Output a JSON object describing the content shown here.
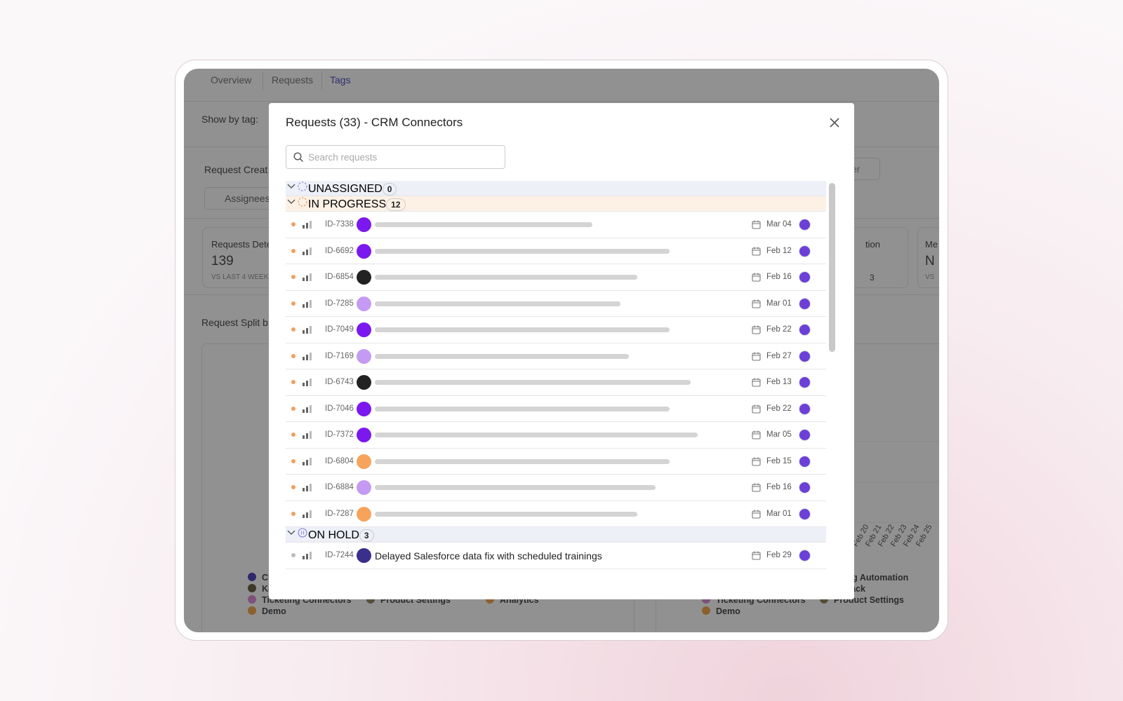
{
  "dashboard": {
    "tabs": [
      "Overview",
      "Requests",
      "Tags"
    ],
    "filter_label": "Show by tag:",
    "section_title": "Request Creat",
    "assignees_button": "Assignees",
    "button_fragment": "er",
    "card_title": "Requests Detec",
    "card_value": 139,
    "card_note": "VS LAST 4 WEEK",
    "right_card_title": "tion",
    "right_card_delta": 3,
    "far_card_title": "Me",
    "far_card_value": "N",
    "far_card_note": "VS",
    "split_title": "Request Split b",
    "left_legend": [
      {
        "label": "Cl",
        "color": "#3b2fb0"
      },
      {
        "label": "Ka",
        "color": "#5a4a2a"
      },
      {
        "label": "Ticketing Connectors",
        "color": "#d77fd0"
      },
      {
        "label": "Product Settings",
        "color": "#8a7a55"
      },
      {
        "label": "Analytics",
        "color": "#f39c3a"
      },
      {
        "label": "Demo",
        "color": "#f39c3a"
      }
    ],
    "right_legend": [
      {
        "label": "keting Automation",
        "color": null
      },
      {
        "label": "to Slack",
        "color": null
      },
      {
        "label": "Ticketing Connectors",
        "color": "#d77fd0"
      },
      {
        "label": "Product Settings",
        "color": "#8a7a55"
      },
      {
        "label": "Demo",
        "color": "#f39c3a"
      }
    ],
    "x_labels": [
      "Feb 20",
      "Feb 21",
      "Feb 22",
      "Feb 23",
      "Feb 24",
      "Feb 25"
    ]
  },
  "modal": {
    "title": "Requests (33) - CRM Connectors",
    "search_placeholder": "Search requests",
    "groups": [
      {
        "label": "UNASSIGNED",
        "count": 0,
        "background": "#eef0f8",
        "rows": []
      },
      {
        "label": "IN PROGRESS",
        "count": 12,
        "background": "#fdf1e6",
        "rows": [
          {
            "id": "ID-7338",
            "date": "Mar 04",
            "avatar_color": "#7a18ef"
          },
          {
            "id": "ID-6692",
            "date": "Feb 12",
            "avatar_color": "#7a18ef"
          },
          {
            "id": "ID-6854",
            "date": "Feb 16",
            "avatar_color": "#222222"
          },
          {
            "id": "ID-7285",
            "date": "Mar 01",
            "avatar_color": "#c49af2"
          },
          {
            "id": "ID-7049",
            "date": "Feb 22",
            "avatar_color": "#7a18ef"
          },
          {
            "id": "ID-7169",
            "date": "Feb 27",
            "avatar_color": "#c49af2"
          },
          {
            "id": "ID-6743",
            "date": "Feb 13",
            "avatar_color": "#222222"
          },
          {
            "id": "ID-7046",
            "date": "Feb 22",
            "avatar_color": "#7a18ef"
          },
          {
            "id": "ID-7372",
            "date": "Mar 05",
            "avatar_color": "#7a18ef"
          },
          {
            "id": "ID-6804",
            "date": "Feb 15",
            "avatar_color": "#f7a35c"
          },
          {
            "id": "ID-6884",
            "date": "Feb 16",
            "avatar_color": "#c49af2"
          },
          {
            "id": "ID-7287",
            "date": "Mar 01",
            "avatar_color": "#f7a35c"
          }
        ]
      },
      {
        "label": "ON HOLD",
        "count": 3,
        "background": "#eef0f8",
        "rows": [
          {
            "id": "ID-7244",
            "title": "Delayed Salesforce data fix with scheduled trainings",
            "date": "Feb 29",
            "avatar_color": "#3a2f8a"
          }
        ]
      }
    ]
  }
}
